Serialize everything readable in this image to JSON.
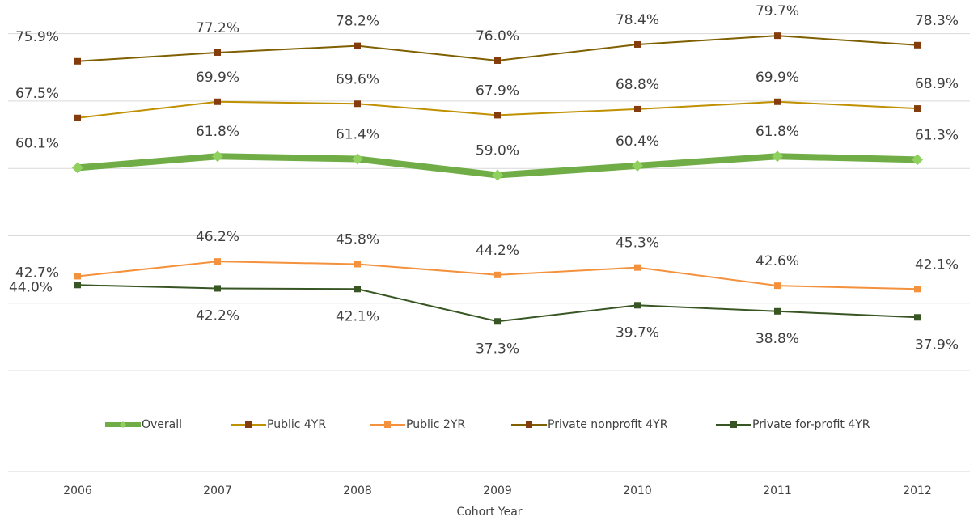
{
  "chart_data": {
    "type": "line",
    "x_label": "Cohort Year",
    "categories": [
      "2006",
      "2007",
      "2008",
      "2009",
      "2010",
      "2011",
      "2012"
    ],
    "ylim": [
      15,
      85
    ],
    "yticks": [
      30,
      40,
      50,
      60,
      70,
      80
    ],
    "grid": true,
    "legend": "bottom",
    "series": [
      {
        "name": "Overall",
        "color": "#70ad47",
        "marker_color": "#8fd05e",
        "marker": "diamond",
        "values": [
          60.1,
          61.8,
          61.4,
          59.0,
          60.4,
          61.8,
          61.3
        ],
        "value_labels": [
          "60.1%",
          "61.8%",
          "61.4%",
          "59.0%",
          "60.4%",
          "61.8%",
          "61.3%"
        ]
      },
      {
        "name": "Public 4YR",
        "color": "#bf9000",
        "marker_color": "#843c0c",
        "marker": "square",
        "values": [
          67.5,
          69.9,
          69.6,
          67.9,
          68.8,
          69.9,
          68.9
        ],
        "value_labels": [
          "67.5%",
          "69.9%",
          "69.6%",
          "67.9%",
          "68.8%",
          "69.9%",
          "68.9%"
        ]
      },
      {
        "name": "Public 2YR",
        "color": "#f4913c",
        "marker_color": "#f4913c",
        "marker": "square",
        "values": [
          44.0,
          46.2,
          45.8,
          44.2,
          45.3,
          42.6,
          42.1
        ],
        "value_labels": [
          "44.0%",
          "46.2%",
          "45.8%",
          "44.2%",
          "45.3%",
          "42.6%",
          "42.1%"
        ]
      },
      {
        "name": "Private nonprofit 4YR",
        "color": "#7f6000",
        "marker_color": "#843c0c",
        "marker": "square",
        "values": [
          75.9,
          77.2,
          78.2,
          76.0,
          78.4,
          79.7,
          78.3
        ],
        "value_labels": [
          "75.9%",
          "77.2%",
          "78.2%",
          "76.0%",
          "78.4%",
          "79.7%",
          "78.3%"
        ]
      },
      {
        "name": "Private for-profit 4YR",
        "color": "#375623",
        "marker_color": "#375623",
        "marker": "square",
        "values": [
          42.7,
          42.2,
          42.1,
          37.3,
          39.7,
          38.8,
          37.9
        ],
        "value_labels": [
          "42.7%",
          "42.2%",
          "42.1%",
          "37.3%",
          "39.7%",
          "38.8%",
          "37.9%"
        ]
      }
    ]
  }
}
